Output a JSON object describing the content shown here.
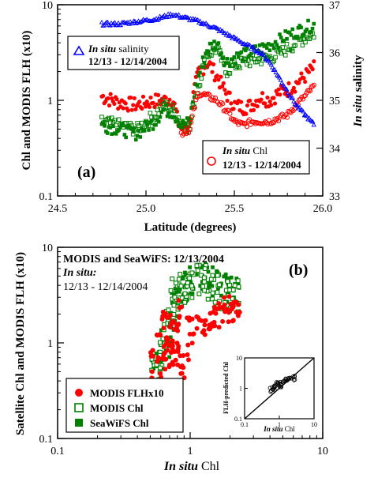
{
  "chart_data": [
    {
      "type": "line",
      "panel_label": "(a)",
      "xlabel": "Latitude (degrees)",
      "ylabel": "Chl and MODIS FLH (x10)",
      "y2label_italic": "In situ",
      "y2label_rest": " salinity",
      "xlim": [
        24.5,
        26.0
      ],
      "ylim": [
        0.1,
        10
      ],
      "y2lim": [
        33,
        37
      ],
      "yscale": "log",
      "x_ticks": [
        "24.5",
        "25.0",
        "25.5",
        "26.0"
      ],
      "y_ticks": [
        "0.1",
        "1",
        "10"
      ],
      "y2_ticks": [
        "33",
        "34",
        "35",
        "36",
        "37"
      ],
      "legend_salinity": {
        "italic": "In situ",
        "rest": " salinity",
        "dates": "12/13 - 12/14/2004"
      },
      "legend_chl": {
        "italic": "In situ",
        "rest": " Chl",
        "dates": "12/13 - 12/14/2004"
      },
      "colors": {
        "salinity": "#0000ff",
        "modis_flh": "#ff0000",
        "modis_chl": "#008000",
        "seawifs_chl": "#008000",
        "insitu_chl": "#ff0000"
      },
      "series": [
        {
          "name": "In situ salinity",
          "axis": "right",
          "x": [
            24.75,
            24.85,
            24.95,
            25.05,
            25.1,
            25.15,
            25.2,
            25.25,
            25.3,
            25.4,
            25.5,
            25.55,
            25.6,
            25.65,
            25.7,
            25.75,
            25.8,
            25.85,
            25.9,
            25.95
          ],
          "y": [
            36.6,
            36.6,
            36.65,
            36.7,
            36.75,
            36.8,
            36.75,
            36.7,
            36.65,
            36.5,
            36.3,
            36.2,
            36.1,
            36.0,
            35.8,
            35.5,
            35.2,
            34.9,
            34.7,
            34.5
          ]
        },
        {
          "name": "MODIS FLHx10",
          "x": [
            24.75,
            24.85,
            24.95,
            25.05,
            25.1,
            25.15,
            25.18,
            25.2,
            25.25,
            25.3,
            25.35,
            25.4,
            25.45,
            25.5,
            25.55,
            25.6,
            25.65,
            25.7,
            25.75,
            25.8,
            25.85,
            25.9,
            25.95
          ],
          "y": [
            1.1,
            0.95,
            0.9,
            1.0,
            1.0,
            1.05,
            0.6,
            0.5,
            0.6,
            2.0,
            2.5,
            1.8,
            1.2,
            0.9,
            0.85,
            0.9,
            1.1,
            1.0,
            1.2,
            1.3,
            1.5,
            1.8,
            2.2
          ]
        },
        {
          "name": "MODIS Chl",
          "x": [
            24.75,
            24.85,
            24.95,
            25.05,
            25.1,
            25.15,
            25.2,
            25.25,
            25.3,
            25.35,
            25.4,
            25.45,
            25.5,
            25.55,
            25.6,
            25.65,
            25.7,
            25.75,
            25.8,
            25.85,
            25.9,
            25.95
          ],
          "y": [
            0.6,
            0.55,
            0.5,
            0.7,
            0.9,
            0.8,
            0.6,
            0.5,
            1.5,
            3.0,
            3.5,
            2.0,
            2.3,
            2.5,
            2.6,
            2.7,
            2.8,
            3.0,
            3.5,
            4.0,
            4.5,
            5.0
          ]
        },
        {
          "name": "SeaWiFS Chl",
          "x": [
            24.75,
            24.85,
            24.95,
            25.05,
            25.1,
            25.15,
            25.2,
            25.25,
            25.3,
            25.35,
            25.4,
            25.45,
            25.5,
            25.55,
            25.6,
            25.65,
            25.7,
            25.75,
            25.8,
            25.85,
            25.9,
            25.95
          ],
          "y": [
            0.55,
            0.5,
            0.45,
            0.6,
            0.8,
            0.75,
            0.55,
            0.6,
            1.8,
            3.5,
            4.0,
            2.5,
            2.8,
            3.0,
            3.2,
            3.5,
            3.8,
            4.2,
            4.8,
            5.2,
            5.8,
            6.2
          ]
        },
        {
          "name": "In situ Chl",
          "x": [
            25.2,
            25.25,
            25.3,
            25.4,
            25.45,
            25.5,
            25.55,
            25.6,
            25.65,
            25.7,
            25.75,
            25.8,
            25.85,
            25.9,
            25.95
          ],
          "y": [
            0.45,
            0.5,
            1.2,
            1.0,
            0.8,
            0.6,
            0.55,
            0.6,
            0.6,
            0.6,
            0.65,
            0.7,
            0.9,
            1.1,
            1.4
          ]
        }
      ]
    },
    {
      "type": "scatter",
      "panel_label": "(b)",
      "title_line1": "MODIS and SeaWiFS: 12/13/2004",
      "title_line2": "In situ:",
      "title_line3": "12/13 - 12/14/2004",
      "xlabel_italic": "In situ",
      "xlabel_rest": " Chl",
      "ylabel": "Satellite Chl and MODIS FLH (x10)",
      "xscale": "log",
      "yscale": "log",
      "xlim": [
        0.1,
        10
      ],
      "ylim": [
        0.1,
        10
      ],
      "x_ticks": [
        "0.1",
        "1",
        "10"
      ],
      "y_ticks": [
        "0.1",
        "1",
        "10"
      ],
      "legend": [
        "MODIS FLHx10",
        "MODIS Chl",
        "SeaWiFS Chl"
      ],
      "series": [
        {
          "name": "MODIS FLHx10",
          "x": [
            0.55,
            0.6,
            0.65,
            0.7,
            0.7,
            0.75,
            0.8,
            0.8,
            0.9,
            1.0,
            1.2,
            1.4,
            1.6,
            1.8,
            2.0,
            2.2
          ],
          "y": [
            0.6,
            0.9,
            1.5,
            1.0,
            0.7,
            1.2,
            2.0,
            0.8,
            0.6,
            1.3,
            1.6,
            1.8,
            2.0,
            2.2,
            2.3,
            2.4
          ]
        },
        {
          "name": "MODIS Chl",
          "x": [
            0.55,
            0.6,
            0.65,
            0.7,
            0.75,
            0.8,
            0.9,
            1.0,
            1.2,
            1.4,
            1.6,
            1.8,
            2.0,
            2.2
          ],
          "y": [
            0.55,
            0.7,
            1.2,
            2.0,
            2.8,
            3.5,
            3.0,
            4.0,
            4.5,
            4.0,
            3.5,
            3.0,
            3.2,
            3.0
          ]
        },
        {
          "name": "SeaWiFS Chl",
          "x": [
            0.55,
            0.6,
            0.65,
            0.7,
            0.75,
            0.8,
            0.9,
            1.0,
            1.2,
            1.4,
            1.6,
            1.8,
            2.0,
            2.2
          ],
          "y": [
            0.5,
            0.65,
            1.0,
            1.8,
            2.5,
            3.2,
            3.5,
            4.5,
            5.0,
            4.5,
            4.0,
            3.5,
            3.5,
            3.2
          ]
        }
      ],
      "inset": {
        "xlabel_italic": "In situ",
        "xlabel_rest": " Chl",
        "ylabel": "FLH-predicted Chl",
        "xlim": [
          0.1,
          10
        ],
        "ylim": [
          0.1,
          10
        ],
        "x_ticks": [
          "0.1",
          "1",
          "10"
        ],
        "y_ticks": [
          "0.1",
          "1",
          "10"
        ],
        "one_to_one_line": true,
        "x": [
          0.6,
          0.7,
          0.8,
          0.9,
          1.0,
          1.2,
          1.5,
          2.0,
          2.5
        ],
        "y": [
          0.9,
          1.0,
          1.2,
          1.5,
          1.3,
          1.6,
          1.8,
          2.0,
          2.2
        ]
      }
    }
  ]
}
